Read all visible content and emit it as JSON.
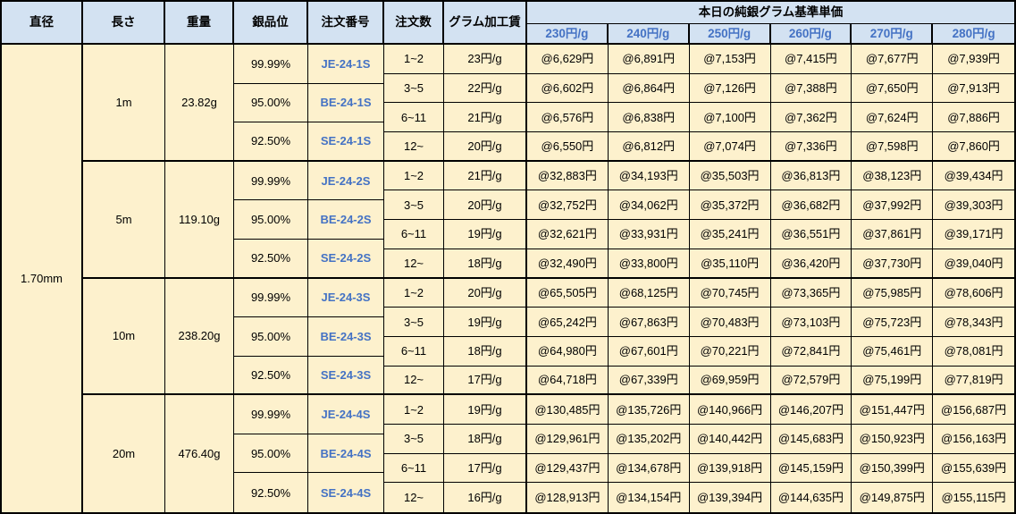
{
  "colors": {
    "header_bg": "#D3E2F2",
    "cell_bg": "#FDF1CD",
    "link_blue": "#4472C4",
    "border": "#000000"
  },
  "header": {
    "diameter": "直径",
    "length": "長さ",
    "weight": "重量",
    "purity": "銀品位",
    "order_no": "注文番号",
    "order_qty": "注文数",
    "gram_fee": "グラム加工賃",
    "price_banner": "本日の純銀グラム基準単価",
    "price_columns": [
      "230円/g",
      "240円/g",
      "250円/g",
      "260円/g",
      "270円/g",
      "280円/g"
    ]
  },
  "diameter_value": "1.70mm",
  "groups": [
    {
      "length": "1m",
      "weight": "23.82g",
      "purity_rows": [
        {
          "purity": "99.99%",
          "order_no": "JE-24-1S"
        },
        {
          "purity": "95.00%",
          "order_no": "BE-24-1S"
        },
        {
          "purity": "92.50%",
          "order_no": "SE-24-1S"
        }
      ],
      "qty_rows": [
        {
          "qty": "1~2",
          "fee": "23円/g",
          "prices": [
            "@6,629円",
            "@6,891円",
            "@7,153円",
            "@7,415円",
            "@7,677円",
            "@7,939円"
          ]
        },
        {
          "qty": "3~5",
          "fee": "22円/g",
          "prices": [
            "@6,602円",
            "@6,864円",
            "@7,126円",
            "@7,388円",
            "@7,650円",
            "@7,913円"
          ]
        },
        {
          "qty": "6~11",
          "fee": "21円/g",
          "prices": [
            "@6,576円",
            "@6,838円",
            "@7,100円",
            "@7,362円",
            "@7,624円",
            "@7,886円"
          ]
        },
        {
          "qty": "12~",
          "fee": "20円/g",
          "prices": [
            "@6,550円",
            "@6,812円",
            "@7,074円",
            "@7,336円",
            "@7,598円",
            "@7,860円"
          ]
        }
      ]
    },
    {
      "length": "5m",
      "weight": "119.10g",
      "purity_rows": [
        {
          "purity": "99.99%",
          "order_no": "JE-24-2S"
        },
        {
          "purity": "95.00%",
          "order_no": "BE-24-2S"
        },
        {
          "purity": "92.50%",
          "order_no": "SE-24-2S"
        }
      ],
      "qty_rows": [
        {
          "qty": "1~2",
          "fee": "21円/g",
          "prices": [
            "@32,883円",
            "@34,193円",
            "@35,503円",
            "@36,813円",
            "@38,123円",
            "@39,434円"
          ]
        },
        {
          "qty": "3~5",
          "fee": "20円/g",
          "prices": [
            "@32,752円",
            "@34,062円",
            "@35,372円",
            "@36,682円",
            "@37,992円",
            "@39,303円"
          ]
        },
        {
          "qty": "6~11",
          "fee": "19円/g",
          "prices": [
            "@32,621円",
            "@33,931円",
            "@35,241円",
            "@36,551円",
            "@37,861円",
            "@39,171円"
          ]
        },
        {
          "qty": "12~",
          "fee": "18円/g",
          "prices": [
            "@32,490円",
            "@33,800円",
            "@35,110円",
            "@36,420円",
            "@37,730円",
            "@39,040円"
          ]
        }
      ]
    },
    {
      "length": "10m",
      "weight": "238.20g",
      "purity_rows": [
        {
          "purity": "99.99%",
          "order_no": "JE-24-3S"
        },
        {
          "purity": "95.00%",
          "order_no": "BE-24-3S"
        },
        {
          "purity": "92.50%",
          "order_no": "SE-24-3S"
        }
      ],
      "qty_rows": [
        {
          "qty": "1~2",
          "fee": "20円/g",
          "prices": [
            "@65,505円",
            "@68,125円",
            "@70,745円",
            "@73,365円",
            "@75,985円",
            "@78,606円"
          ]
        },
        {
          "qty": "3~5",
          "fee": "19円/g",
          "prices": [
            "@65,242円",
            "@67,863円",
            "@70,483円",
            "@73,103円",
            "@75,723円",
            "@78,343円"
          ]
        },
        {
          "qty": "6~11",
          "fee": "18円/g",
          "prices": [
            "@64,980円",
            "@67,601円",
            "@70,221円",
            "@72,841円",
            "@75,461円",
            "@78,081円"
          ]
        },
        {
          "qty": "12~",
          "fee": "17円/g",
          "prices": [
            "@64,718円",
            "@67,339円",
            "@69,959円",
            "@72,579円",
            "@75,199円",
            "@77,819円"
          ]
        }
      ]
    },
    {
      "length": "20m",
      "weight": "476.40g",
      "purity_rows": [
        {
          "purity": "99.99%",
          "order_no": "JE-24-4S"
        },
        {
          "purity": "95.00%",
          "order_no": "BE-24-4S"
        },
        {
          "purity": "92.50%",
          "order_no": "SE-24-4S"
        }
      ],
      "qty_rows": [
        {
          "qty": "1~2",
          "fee": "19円/g",
          "prices": [
            "@130,485円",
            "@135,726円",
            "@140,966円",
            "@146,207円",
            "@151,447円",
            "@156,687円"
          ]
        },
        {
          "qty": "3~5",
          "fee": "18円/g",
          "prices": [
            "@129,961円",
            "@135,202円",
            "@140,442円",
            "@145,683円",
            "@150,923円",
            "@156,163円"
          ]
        },
        {
          "qty": "6~11",
          "fee": "17円/g",
          "prices": [
            "@129,437円",
            "@134,678円",
            "@139,918円",
            "@145,159円",
            "@150,399円",
            "@155,639円"
          ]
        },
        {
          "qty": "12~",
          "fee": "16円/g",
          "prices": [
            "@128,913円",
            "@134,154円",
            "@139,394円",
            "@144,635円",
            "@149,875円",
            "@155,115円"
          ]
        }
      ]
    }
  ]
}
